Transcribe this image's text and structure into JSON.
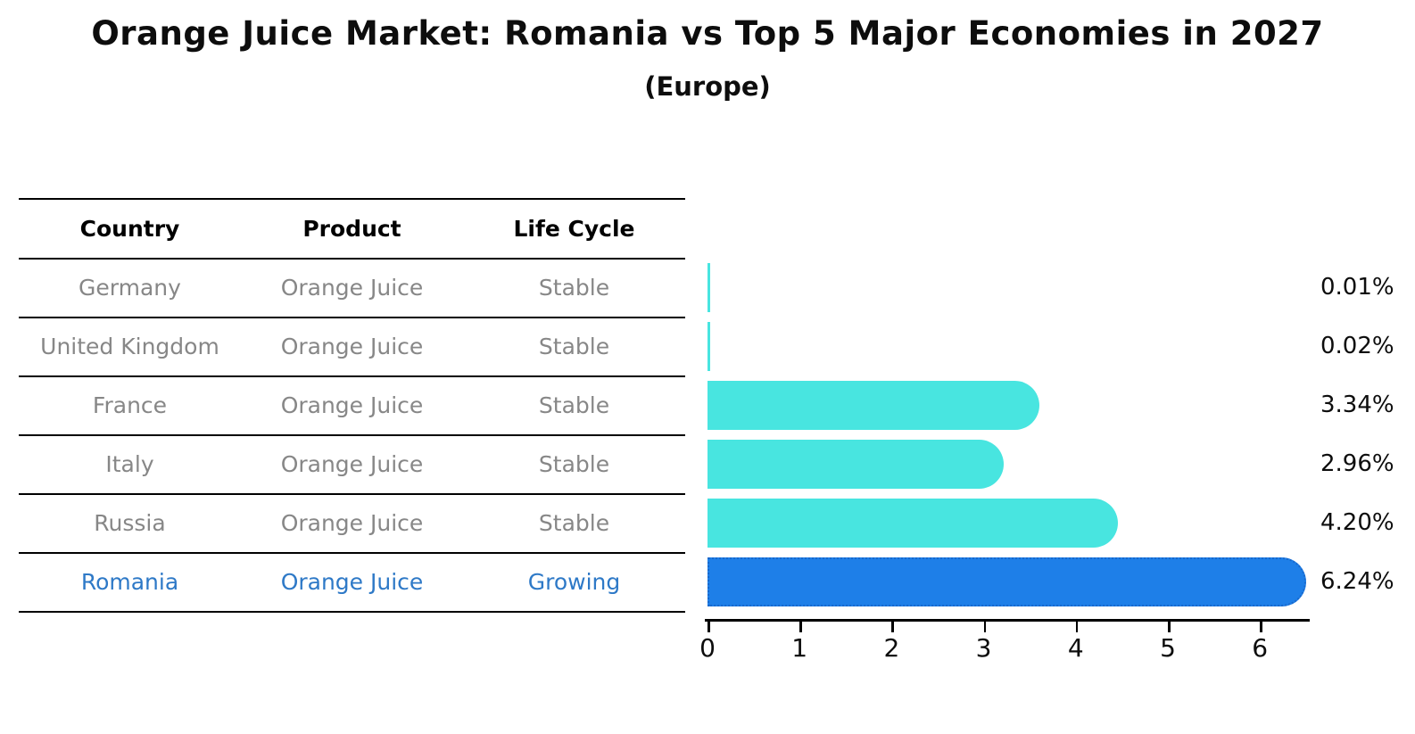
{
  "title": "Orange Juice Market: Romania vs Top 5 Major Economies in 2027",
  "subtitle": "(Europe)",
  "table": {
    "headers": [
      "Country",
      "Product",
      "Life Cycle"
    ],
    "rows": [
      {
        "country": "Germany",
        "product": "Orange Juice",
        "life_cycle": "Stable"
      },
      {
        "country": "United Kingdom",
        "product": "Orange Juice",
        "life_cycle": "Stable"
      },
      {
        "country": "France",
        "product": "Orange Juice",
        "life_cycle": "Stable"
      },
      {
        "country": "Italy",
        "product": "Orange Juice",
        "life_cycle": "Stable"
      },
      {
        "country": "Russia",
        "product": "Orange Juice",
        "life_cycle": "Stable"
      },
      {
        "country": "Romania",
        "product": "Orange Juice",
        "life_cycle": "Growing"
      }
    ]
  },
  "chart_data": {
    "type": "bar",
    "orientation": "horizontal",
    "categories": [
      "Germany",
      "United Kingdom",
      "France",
      "Italy",
      "Russia",
      "Romania"
    ],
    "values": [
      0.01,
      0.02,
      3.34,
      2.96,
      4.2,
      6.24
    ],
    "value_labels": [
      "0.01%",
      "0.02%",
      "3.34%",
      "2.96%",
      "4.20%",
      "6.24%"
    ],
    "x_ticks": [
      "0",
      "1",
      "2",
      "3",
      "4",
      "5",
      "6"
    ],
    "xlim": [
      0,
      6.55
    ],
    "grid": false,
    "legend": "none",
    "highlight_index": 5,
    "colors": {
      "bar_default": "#48e5e0",
      "bar_highlight": "#1e7fe8",
      "bar_highlight_border": "#1868cc",
      "highlight_text": "#2e79c7"
    }
  }
}
